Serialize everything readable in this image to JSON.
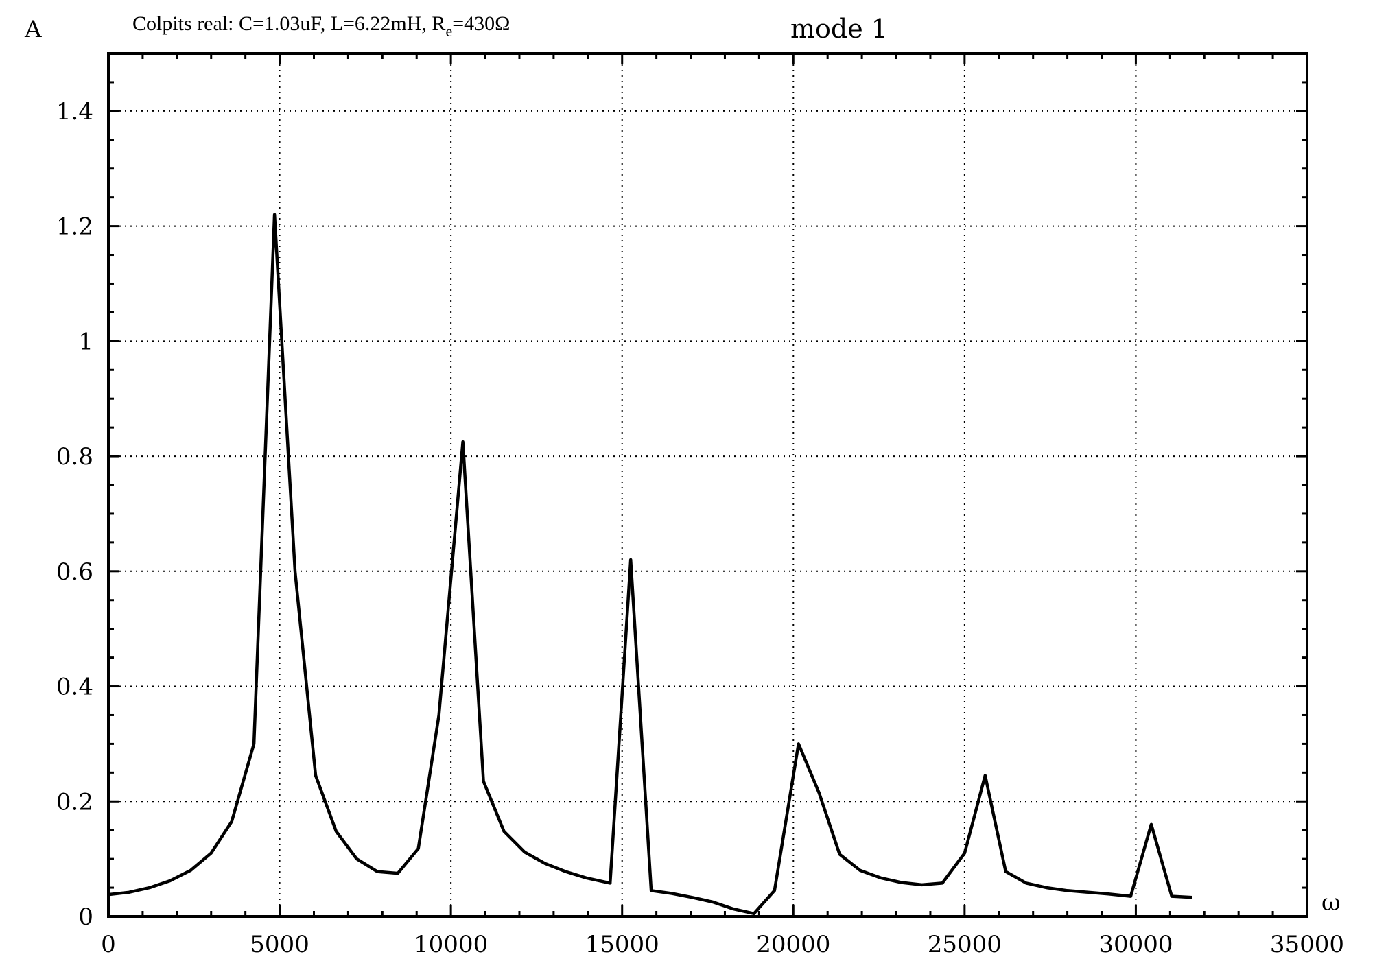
{
  "chart_data": {
    "type": "line",
    "title": "mode 1",
    "subtitle": {
      "prefix": "Colpits real: C=1.03uF, L=6.22mH, R",
      "subscript": "e",
      "suffix": "=430Ω"
    },
    "ylabel": "A",
    "xlabel": "ω",
    "xlim": [
      0,
      35000
    ],
    "ylim": [
      0,
      1.5
    ],
    "x_ticks": [
      0,
      5000,
      10000,
      15000,
      20000,
      25000,
      30000,
      35000
    ],
    "x_tick_labels": [
      "0",
      "5000",
      "10000",
      "15000",
      "20000",
      "25000",
      "30000",
      "35000"
    ],
    "y_ticks": [
      0,
      0.2,
      0.4,
      0.6,
      0.8,
      1.0,
      1.2,
      1.4
    ],
    "y_tick_labels": [
      "0",
      "0.2",
      "0.4",
      "0.6",
      "0.8",
      "1",
      "1.2",
      "1.4"
    ],
    "grid": true,
    "series": [
      {
        "x": [
          0,
          600,
          1200,
          1800,
          2400,
          3000,
          3600,
          4250,
          4850,
          5450,
          6050,
          6650,
          7250,
          7850,
          8450,
          9050,
          9650,
          10350,
          10950,
          11550,
          12150,
          12750,
          13350,
          13950,
          14650,
          15250,
          15850,
          16450,
          17050,
          17650,
          18250,
          18850,
          19450,
          20150,
          20750,
          21350,
          21950,
          22550,
          23150,
          23750,
          24350,
          25000,
          25600,
          26200,
          26800,
          27400,
          28000,
          28600,
          29200,
          29850,
          30450,
          31050,
          31650
        ],
        "y": [
          0.038,
          0.042,
          0.05,
          0.062,
          0.08,
          0.11,
          0.165,
          0.3,
          1.22,
          0.6,
          0.245,
          0.148,
          0.1,
          0.078,
          0.075,
          0.118,
          0.35,
          0.825,
          0.235,
          0.148,
          0.112,
          0.092,
          0.078,
          0.067,
          0.058,
          0.62,
          0.045,
          0.04,
          0.033,
          0.025,
          0.013,
          0.005,
          0.045,
          0.3,
          0.215,
          0.108,
          0.08,
          0.067,
          0.059,
          0.055,
          0.058,
          0.11,
          0.245,
          0.078,
          0.058,
          0.05,
          0.045,
          0.042,
          0.039,
          0.035,
          0.16,
          0.035,
          0.033
        ]
      }
    ]
  }
}
